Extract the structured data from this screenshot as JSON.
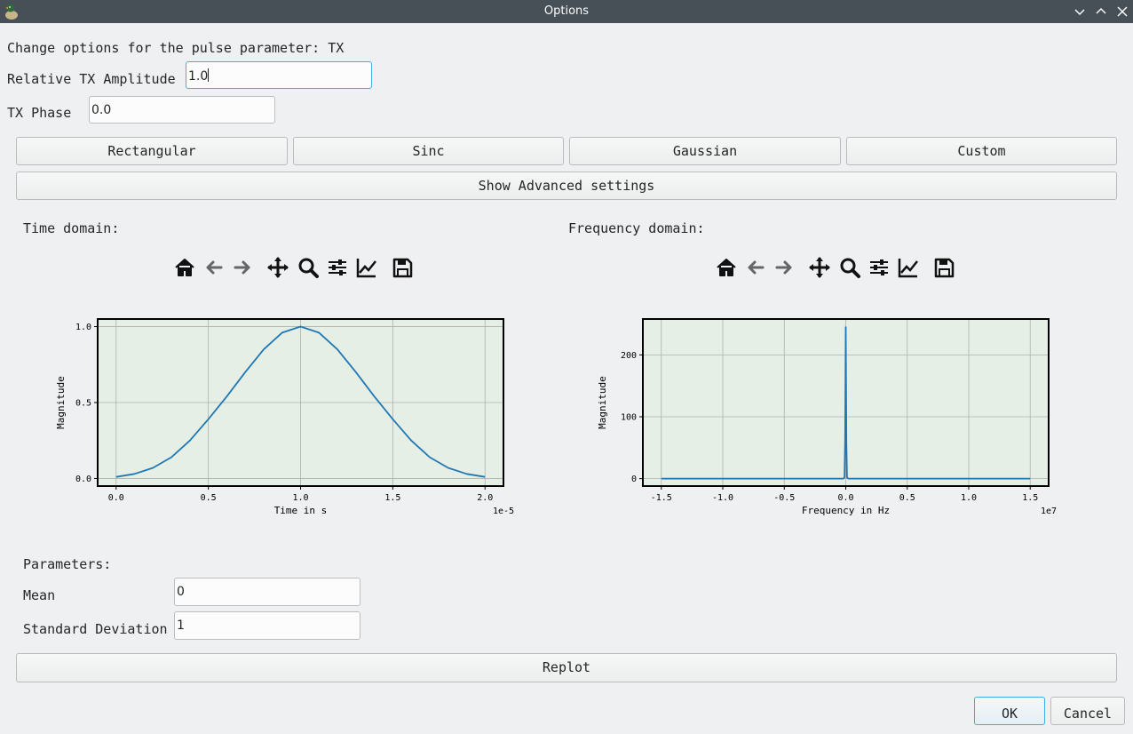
{
  "window": {
    "title": "Options"
  },
  "header": {
    "text": "Change options for the pulse parameter: TX"
  },
  "amplitude": {
    "label": "Relative TX Amplitude",
    "value": "1.0"
  },
  "phase": {
    "label": "TX Phase",
    "value": "0.0"
  },
  "shapes": {
    "rectangular": "Rectangular",
    "sinc": "Sinc",
    "gaussian": "Gaussian",
    "custom": "Custom"
  },
  "advanced_button": "Show Advanced settings",
  "time_plot": {
    "heading": "Time domain:",
    "toolbar_icons": [
      "home-icon",
      "back-arrow-icon",
      "forward-arrow-icon",
      "pan-icon",
      "zoom-icon",
      "sliders-icon",
      "edit-axes-icon",
      "save-icon"
    ]
  },
  "freq_plot": {
    "heading": "Frequency domain:",
    "toolbar_icons": [
      "home-icon",
      "back-arrow-icon",
      "forward-arrow-icon",
      "pan-icon",
      "zoom-icon",
      "sliders-icon",
      "edit-axes-icon",
      "save-icon"
    ]
  },
  "parameters": {
    "heading": "Parameters:",
    "mean": {
      "label": "Mean",
      "value": "0"
    },
    "std": {
      "label": "Standard Deviation",
      "value": "1"
    }
  },
  "replot_button": "Replot",
  "dialog": {
    "ok": "OK",
    "cancel": "Cancel"
  },
  "colors": {
    "line": "#1f77b4",
    "plot_bg": "#e5efe6",
    "titlebar": "#475057",
    "focus": "#3daee9"
  },
  "chart_data": [
    {
      "type": "line",
      "title": "",
      "xlabel": "Time in s",
      "ylabel": "Magnitude",
      "x_offset_text": "1e-5",
      "xlim": [
        -0.1,
        2.1
      ],
      "ylim": [
        -0.05,
        1.05
      ],
      "xticks": [
        0.0,
        0.5,
        1.0,
        1.5,
        2.0
      ],
      "xtick_labels": [
        "0.0",
        "0.5",
        "1.0",
        "1.5",
        "2.0"
      ],
      "yticks": [
        0.0,
        0.5,
        1.0
      ],
      "ytick_labels": [
        "0.0",
        "0.5",
        "1.0"
      ],
      "grid": true,
      "series": [
        {
          "x": [
            0.0,
            0.1,
            0.2,
            0.3,
            0.4,
            0.5,
            0.6,
            0.7,
            0.8,
            0.9,
            1.0,
            1.1,
            1.2,
            1.3,
            1.4,
            1.5,
            1.6,
            1.7,
            1.8,
            1.9,
            2.0
          ],
          "values": [
            0.01,
            0.03,
            0.07,
            0.14,
            0.25,
            0.39,
            0.54,
            0.7,
            0.85,
            0.96,
            1.0,
            0.96,
            0.85,
            0.7,
            0.54,
            0.39,
            0.25,
            0.14,
            0.07,
            0.03,
            0.01
          ]
        }
      ]
    },
    {
      "type": "line",
      "title": "",
      "xlabel": "Frequency in Hz",
      "ylabel": "Magnitude",
      "x_offset_text": "1e7",
      "xlim": [
        -1.65,
        1.65
      ],
      "ylim": [
        -12,
        258
      ],
      "xticks": [
        -1.5,
        -1.0,
        -0.5,
        0.0,
        0.5,
        1.0,
        1.5
      ],
      "xtick_labels": [
        "-1.5",
        "-1.0",
        "-0.5",
        "0.0",
        "0.5",
        "1.0",
        "1.5"
      ],
      "yticks": [
        0,
        100,
        200
      ],
      "ytick_labels": [
        "0",
        "100",
        "200"
      ],
      "grid": true,
      "series": [
        {
          "x": [
            -1.5,
            -0.02,
            -0.01,
            -0.005,
            0.0,
            0.005,
            0.01,
            0.02,
            1.5
          ],
          "values": [
            0,
            0,
            2,
            60,
            245,
            60,
            2,
            0,
            0
          ]
        }
      ]
    }
  ]
}
